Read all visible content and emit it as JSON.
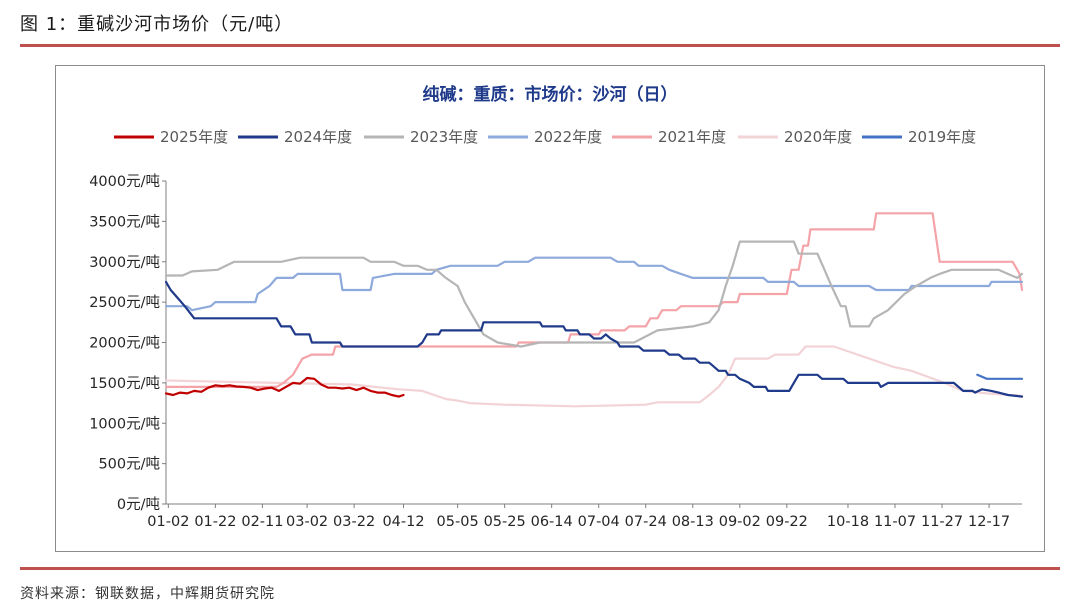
{
  "figure": {
    "label": "图 1：重碱沙河市场价（元/吨）",
    "source": "资料来源：钢联数据，中辉期货研究院"
  },
  "colors": {
    "rule": "#c0504d",
    "title": "#1f3a8a"
  },
  "chart_data": {
    "type": "line",
    "title": "纯碱：重质：市场价：沙河（日）",
    "xlabel": "",
    "ylabel": "",
    "ylim": [
      0,
      4000
    ],
    "y_ticks": [
      0,
      500,
      1000,
      1500,
      2000,
      2500,
      3000,
      3500,
      4000
    ],
    "y_tick_labels": [
      "0元/吨",
      "500元/吨",
      "1000元/吨",
      "1500元/吨",
      "2000元/吨",
      "2500元/吨",
      "3000元/吨",
      "3500元/吨",
      "4000元/吨"
    ],
    "x_day_range": [
      1,
      365
    ],
    "x_ticks": [
      {
        "day": 2,
        "label": "01-02"
      },
      {
        "day": 22,
        "label": "01-22"
      },
      {
        "day": 42,
        "label": "02-11"
      },
      {
        "day": 61,
        "label": "03-02"
      },
      {
        "day": 81,
        "label": "03-22"
      },
      {
        "day": 102,
        "label": "04-12"
      },
      {
        "day": 125,
        "label": "05-05"
      },
      {
        "day": 145,
        "label": "05-25"
      },
      {
        "day": 165,
        "label": "06-14"
      },
      {
        "day": 185,
        "label": "07-04"
      },
      {
        "day": 205,
        "label": "07-24"
      },
      {
        "day": 225,
        "label": "08-13"
      },
      {
        "day": 245,
        "label": "09-02"
      },
      {
        "day": 265,
        "label": "09-22"
      },
      {
        "day": 291,
        "label": "10-18"
      },
      {
        "day": 311,
        "label": "11-07"
      },
      {
        "day": 331,
        "label": "11-27"
      },
      {
        "day": 351,
        "label": "12-17"
      }
    ],
    "grid": false,
    "legend_position": "top",
    "series": [
      {
        "name": "2025年度",
        "color": "#c00000",
        "width": 2.2,
        "step": false,
        "points": [
          [
            1,
            1370
          ],
          [
            4,
            1350
          ],
          [
            7,
            1380
          ],
          [
            10,
            1370
          ],
          [
            13,
            1400
          ],
          [
            16,
            1390
          ],
          [
            19,
            1440
          ],
          [
            22,
            1470
          ],
          [
            25,
            1460
          ],
          [
            28,
            1470
          ],
          [
            31,
            1455
          ],
          [
            34,
            1450
          ],
          [
            37,
            1440
          ],
          [
            40,
            1410
          ],
          [
            43,
            1430
          ],
          [
            46,
            1440
          ],
          [
            49,
            1400
          ],
          [
            52,
            1450
          ],
          [
            55,
            1500
          ],
          [
            58,
            1490
          ],
          [
            61,
            1560
          ],
          [
            64,
            1550
          ],
          [
            67,
            1480
          ],
          [
            70,
            1440
          ],
          [
            73,
            1440
          ],
          [
            76,
            1430
          ],
          [
            79,
            1440
          ],
          [
            82,
            1410
          ],
          [
            85,
            1440
          ],
          [
            88,
            1400
          ],
          [
            91,
            1380
          ],
          [
            94,
            1380
          ],
          [
            97,
            1350
          ],
          [
            100,
            1330
          ],
          [
            102,
            1350
          ]
        ]
      },
      {
        "name": "2024年度",
        "color": "#1f3a8a",
        "width": 2.2,
        "step": true,
        "points": [
          [
            1,
            2750
          ],
          [
            3,
            2650
          ],
          [
            6,
            2550
          ],
          [
            9,
            2450
          ],
          [
            13,
            2300
          ],
          [
            48,
            2300
          ],
          [
            50,
            2200
          ],
          [
            54,
            2200
          ],
          [
            56,
            2100
          ],
          [
            62,
            2100
          ],
          [
            63,
            2000
          ],
          [
            75,
            2000
          ],
          [
            76,
            1950
          ],
          [
            90,
            1950
          ],
          [
            93,
            1950
          ],
          [
            108,
            1950
          ],
          [
            110,
            2000
          ],
          [
            112,
            2100
          ],
          [
            117,
            2100
          ],
          [
            118,
            2150
          ],
          [
            135,
            2150
          ],
          [
            136,
            2250
          ],
          [
            160,
            2250
          ],
          [
            161,
            2200
          ],
          [
            170,
            2200
          ],
          [
            171,
            2150
          ],
          [
            176,
            2150
          ],
          [
            177,
            2100
          ],
          [
            181,
            2100
          ],
          [
            183,
            2050
          ],
          [
            186,
            2050
          ],
          [
            188,
            2100
          ],
          [
            190,
            2050
          ],
          [
            193,
            2000
          ],
          [
            194,
            1950
          ],
          [
            202,
            1950
          ],
          [
            204,
            1900
          ],
          [
            213,
            1900
          ],
          [
            215,
            1850
          ],
          [
            219,
            1850
          ],
          [
            221,
            1800
          ],
          [
            226,
            1800
          ],
          [
            228,
            1750
          ],
          [
            232,
            1750
          ],
          [
            234,
            1700
          ],
          [
            236,
            1650
          ],
          [
            239,
            1650
          ],
          [
            240,
            1600
          ],
          [
            243,
            1600
          ],
          [
            245,
            1550
          ],
          [
            249,
            1500
          ],
          [
            251,
            1450
          ],
          [
            256,
            1450
          ],
          [
            257,
            1400
          ],
          [
            266,
            1400
          ],
          [
            267,
            1450
          ],
          [
            270,
            1600
          ],
          [
            278,
            1600
          ],
          [
            280,
            1550
          ],
          [
            289,
            1550
          ],
          [
            291,
            1500
          ],
          [
            301,
            1500
          ],
          [
            304,
            1500
          ],
          [
            305,
            1450
          ],
          [
            308,
            1500
          ],
          [
            325,
            1500
          ],
          [
            330,
            1500
          ],
          [
            336,
            1500
          ],
          [
            338,
            1450
          ],
          [
            340,
            1400
          ],
          [
            344,
            1400
          ],
          [
            345,
            1380
          ],
          [
            348,
            1420
          ],
          [
            352,
            1400
          ],
          [
            355,
            1380
          ],
          [
            359,
            1350
          ],
          [
            365,
            1330
          ]
        ]
      },
      {
        "name": "2023年度",
        "color": "#b5b5b5",
        "width": 2.2,
        "step": false,
        "points": [
          [
            1,
            2830
          ],
          [
            8,
            2830
          ],
          [
            12,
            2880
          ],
          [
            23,
            2900
          ],
          [
            30,
            3000
          ],
          [
            50,
            3000
          ],
          [
            58,
            3050
          ],
          [
            85,
            3050
          ],
          [
            88,
            3000
          ],
          [
            98,
            3000
          ],
          [
            102,
            2950
          ],
          [
            108,
            2950
          ],
          [
            112,
            2900
          ],
          [
            116,
            2900
          ],
          [
            120,
            2800
          ],
          [
            125,
            2700
          ],
          [
            128,
            2500
          ],
          [
            132,
            2300
          ],
          [
            136,
            2100
          ],
          [
            142,
            2000
          ],
          [
            152,
            1950
          ],
          [
            160,
            2000
          ],
          [
            200,
            2000
          ],
          [
            210,
            2150
          ],
          [
            225,
            2200
          ],
          [
            232,
            2250
          ],
          [
            236,
            2400
          ],
          [
            239,
            2700
          ],
          [
            242,
            2950
          ],
          [
            245,
            3250
          ],
          [
            260,
            3250
          ],
          [
            268,
            3250
          ],
          [
            270,
            3100
          ],
          [
            278,
            3100
          ],
          [
            281,
            2900
          ],
          [
            284,
            2700
          ],
          [
            288,
            2450
          ],
          [
            290,
            2450
          ],
          [
            292,
            2200
          ],
          [
            300,
            2200
          ],
          [
            302,
            2300
          ],
          [
            308,
            2400
          ],
          [
            315,
            2600
          ],
          [
            320,
            2700
          ],
          [
            326,
            2800
          ],
          [
            330,
            2850
          ],
          [
            335,
            2900
          ],
          [
            355,
            2900
          ],
          [
            359,
            2850
          ],
          [
            363,
            2800
          ],
          [
            365,
            2850
          ]
        ]
      },
      {
        "name": "2022年度",
        "color": "#8ea9db",
        "width": 2.2,
        "step": true,
        "points": [
          [
            1,
            2450
          ],
          [
            10,
            2450
          ],
          [
            12,
            2400
          ],
          [
            20,
            2450
          ],
          [
            22,
            2500
          ],
          [
            39,
            2500
          ],
          [
            40,
            2600
          ],
          [
            45,
            2700
          ],
          [
            48,
            2800
          ],
          [
            55,
            2800
          ],
          [
            57,
            2850
          ],
          [
            75,
            2850
          ],
          [
            76,
            2650
          ],
          [
            88,
            2650
          ],
          [
            89,
            2800
          ],
          [
            98,
            2850
          ],
          [
            114,
            2850
          ],
          [
            116,
            2900
          ],
          [
            122,
            2950
          ],
          [
            142,
            2950
          ],
          [
            145,
            3000
          ],
          [
            155,
            3000
          ],
          [
            158,
            3050
          ],
          [
            190,
            3050
          ],
          [
            193,
            3000
          ],
          [
            200,
            3000
          ],
          [
            202,
            2950
          ],
          [
            212,
            2950
          ],
          [
            215,
            2900
          ],
          [
            220,
            2850
          ],
          [
            225,
            2800
          ],
          [
            255,
            2800
          ],
          [
            257,
            2750
          ],
          [
            268,
            2750
          ],
          [
            270,
            2700
          ],
          [
            300,
            2700
          ],
          [
            303,
            2650
          ],
          [
            317,
            2650
          ],
          [
            318,
            2700
          ],
          [
            351,
            2700
          ],
          [
            352,
            2750
          ],
          [
            365,
            2750
          ]
        ]
      },
      {
        "name": "2021年度",
        "color": "#f4a3a8",
        "width": 2.2,
        "step": true,
        "points": [
          [
            1,
            1450
          ],
          [
            48,
            1450
          ],
          [
            51,
            1500
          ],
          [
            53,
            1550
          ],
          [
            55,
            1600
          ],
          [
            57,
            1700
          ],
          [
            59,
            1800
          ],
          [
            63,
            1850
          ],
          [
            72,
            1850
          ],
          [
            73,
            1950
          ],
          [
            101,
            1950
          ],
          [
            150,
            1950
          ],
          [
            151,
            2000
          ],
          [
            172,
            2000
          ],
          [
            173,
            2100
          ],
          [
            185,
            2100
          ],
          [
            186,
            2150
          ],
          [
            196,
            2150
          ],
          [
            198,
            2200
          ],
          [
            205,
            2200
          ],
          [
            207,
            2300
          ],
          [
            210,
            2300
          ],
          [
            212,
            2400
          ],
          [
            218,
            2400
          ],
          [
            220,
            2450
          ],
          [
            236,
            2450
          ],
          [
            238,
            2500
          ],
          [
            244,
            2500
          ],
          [
            245,
            2600
          ],
          [
            265,
            2600
          ],
          [
            267,
            2900
          ],
          [
            270,
            2900
          ],
          [
            272,
            3200
          ],
          [
            274,
            3200
          ],
          [
            275,
            3400
          ],
          [
            302,
            3400
          ],
          [
            303,
            3600
          ],
          [
            325,
            3600
          ],
          [
            327,
            3600
          ],
          [
            330,
            3000
          ],
          [
            361,
            3000
          ],
          [
            363,
            2900
          ],
          [
            364,
            2850
          ],
          [
            365,
            2650
          ]
        ]
      },
      {
        "name": "2020年度",
        "color": "#f2d3d6",
        "width": 2.2,
        "step": false,
        "points": [
          [
            1,
            1530
          ],
          [
            80,
            1480
          ],
          [
            100,
            1420
          ],
          [
            110,
            1400
          ],
          [
            120,
            1300
          ],
          [
            125,
            1280
          ],
          [
            130,
            1250
          ],
          [
            145,
            1230
          ],
          [
            175,
            1210
          ],
          [
            205,
            1230
          ],
          [
            210,
            1260
          ],
          [
            228,
            1260
          ],
          [
            232,
            1350
          ],
          [
            236,
            1450
          ],
          [
            240,
            1600
          ],
          [
            243,
            1800
          ],
          [
            257,
            1800
          ],
          [
            260,
            1850
          ],
          [
            270,
            1850
          ],
          [
            273,
            1950
          ],
          [
            285,
            1950
          ],
          [
            300,
            1800
          ],
          [
            310,
            1700
          ],
          [
            318,
            1650
          ],
          [
            332,
            1500
          ],
          [
            340,
            1400
          ],
          [
            350,
            1370
          ],
          [
            365,
            1340
          ]
        ]
      },
      {
        "name": "2019年度",
        "color": "#4472c4",
        "width": 2.2,
        "step": true,
        "points": [
          [
            346,
            1600
          ],
          [
            350,
            1550
          ],
          [
            365,
            1550
          ]
        ]
      }
    ]
  }
}
